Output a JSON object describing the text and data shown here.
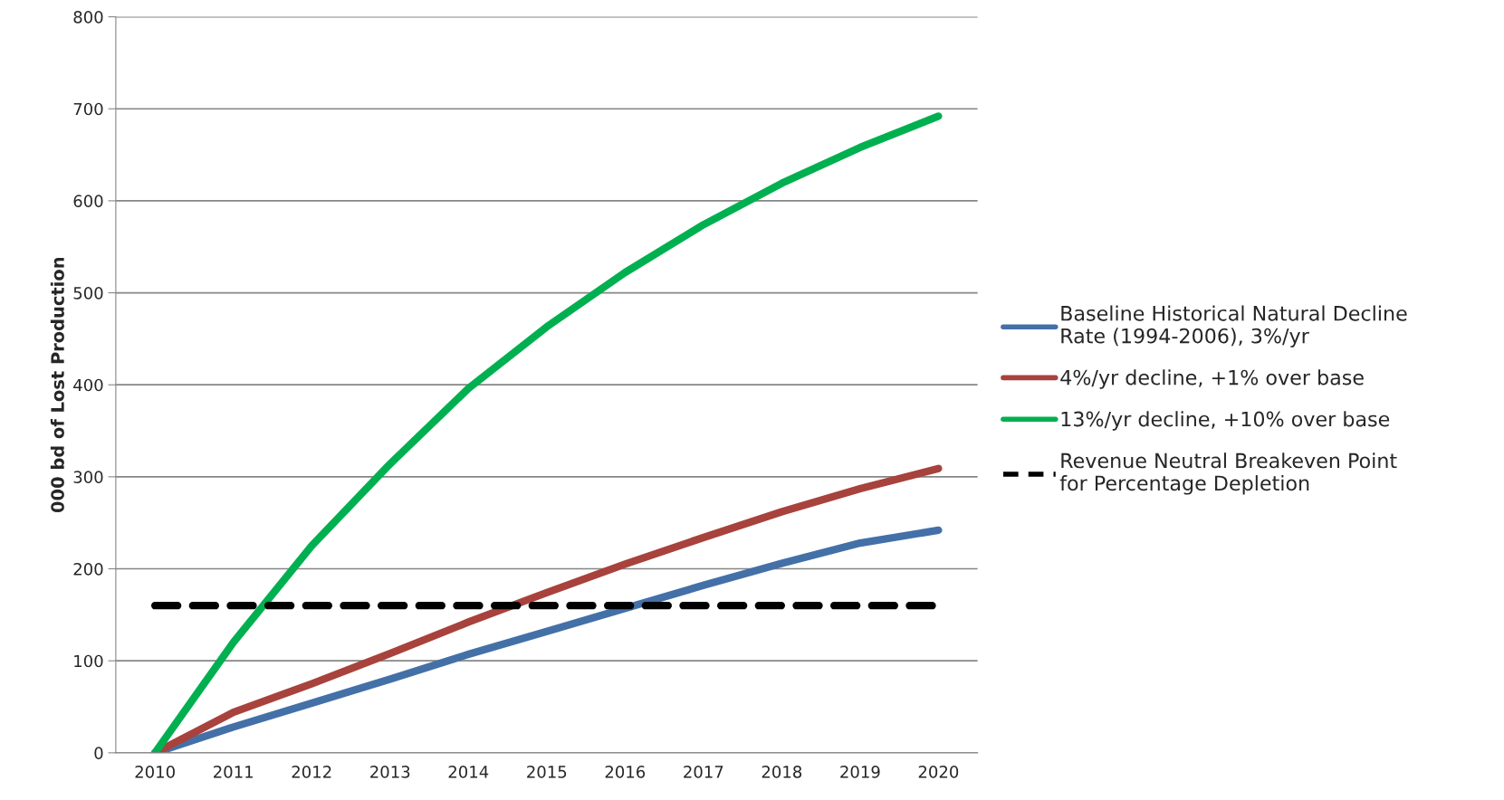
{
  "chart_data": {
    "type": "line",
    "ylabel": "000 bd of Lost Production",
    "categories": [
      "2010",
      "2011",
      "2012",
      "2013",
      "2014",
      "2015",
      "2016",
      "2017",
      "2018",
      "2019",
      "2020"
    ],
    "series": [
      {
        "name": "Baseline Historical Natural Decline\nRate (1994-2006), 3%/yr",
        "color": "#4470a8",
        "values": [
          0,
          28,
          54,
          80,
          107,
          132,
          157,
          182,
          206,
          228,
          242
        ]
      },
      {
        "name": "4%/yr decline, +1% over base",
        "color": "#a8423c",
        "values": [
          0,
          44,
          75,
          108,
          142,
          174,
          205,
          234,
          262,
          287,
          309
        ]
      },
      {
        "name": "13%/yr decline, +10% over base",
        "color": "#00b050",
        "values": [
          0,
          120,
          225,
          314,
          396,
          463,
          522,
          574,
          619,
          658,
          692
        ]
      },
      {
        "name": "Revenue Neutral Breakeven Point\nfor Percentage Depletion",
        "color": "#000000",
        "line_style": "dashed",
        "values": [
          160,
          160,
          160,
          160,
          160,
          160,
          160,
          160,
          160,
          160,
          160
        ]
      }
    ],
    "ylim": [
      0,
      800
    ],
    "yticks": [
      0,
      100,
      200,
      300,
      400,
      500,
      600,
      700,
      800
    ],
    "grid": "y",
    "legend": "right",
    "marker": "none"
  }
}
